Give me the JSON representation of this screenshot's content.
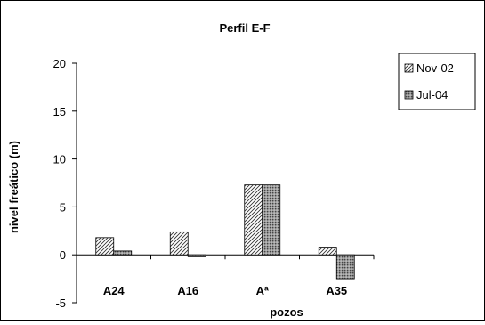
{
  "chart_data": {
    "type": "bar",
    "title": "Perfil E-F",
    "xlabel": "pozos",
    "ylabel": "nivel freático (m)",
    "categories": [
      "A24",
      "A16",
      "Aª",
      "A35"
    ],
    "series": [
      {
        "name": "Nov-02",
        "values": [
          1.8,
          2.4,
          7.3,
          0.8
        ],
        "pattern": "diagonal-hatch",
        "color": "#ffffff"
      },
      {
        "name": "Jul-04",
        "values": [
          0.4,
          -0.2,
          7.3,
          -2.5
        ],
        "pattern": "dense-dots",
        "color": "#a6a6a6"
      }
    ],
    "ylim": [
      -5,
      20
    ],
    "yticks": [
      -5,
      0,
      5,
      10,
      15,
      20
    ],
    "grid": false,
    "legend_position": "top-right"
  }
}
